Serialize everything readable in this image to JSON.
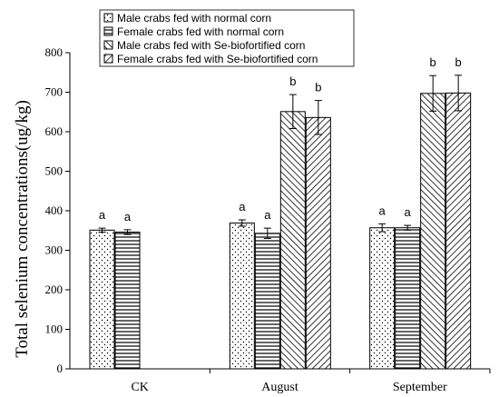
{
  "chart_data": {
    "type": "bar",
    "categories": [
      "CK",
      "August",
      "September"
    ],
    "ylabel": "Total selenium concentrations(ug/kg)",
    "xlabel": "",
    "ylim": [
      0,
      800
    ],
    "yticks": [
      0,
      100,
      200,
      300,
      400,
      500,
      600,
      700,
      800
    ],
    "grid": false,
    "legend_position": "top",
    "series": [
      {
        "name": "Male crabs fed with normal corn",
        "pattern": "dots",
        "values": [
          351,
          369,
          357
        ],
        "errors": [
          5,
          8,
          10
        ],
        "letters": [
          "a",
          "a",
          "a"
        ]
      },
      {
        "name": "Female crabs fed with normal corn",
        "pattern": "horizontal-lines",
        "values": [
          346,
          343,
          357
        ],
        "errors": [
          6,
          13,
          6
        ],
        "letters": [
          "a",
          "a",
          "a"
        ]
      },
      {
        "name": "Male crabs fed with  Se-biofortified corn",
        "pattern": "forward-diagonal",
        "values": [
          null,
          651,
          697
        ],
        "errors": [
          null,
          43,
          45
        ],
        "letters": [
          null,
          "b",
          "b"
        ]
      },
      {
        "name": "Female crabs fed with Se-biofortified corn",
        "pattern": "backward-diagonal",
        "values": [
          null,
          636,
          698
        ],
        "errors": [
          null,
          43,
          45
        ],
        "letters": [
          null,
          "b",
          "b"
        ]
      }
    ]
  }
}
